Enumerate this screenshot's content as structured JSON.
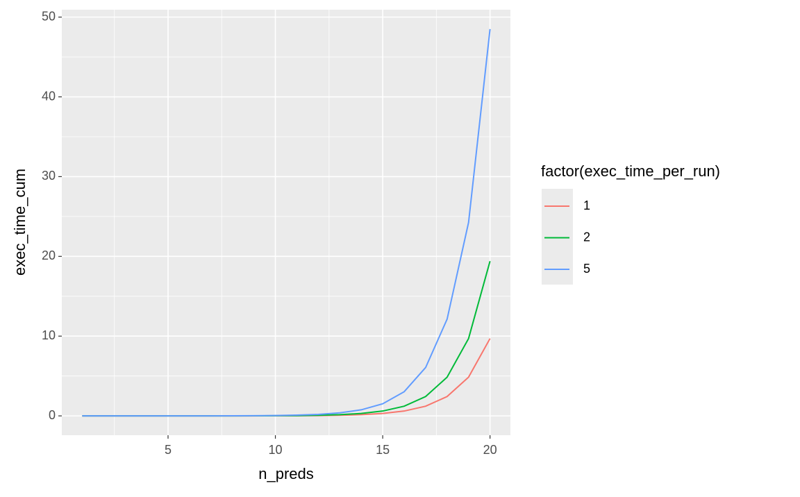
{
  "chart_data": {
    "type": "line",
    "x_label": "n_preds",
    "y_label": "exec_time_cum",
    "legend_title": "factor(exec_time_per_run)",
    "legend": "right",
    "x": [
      1,
      2,
      3,
      4,
      5,
      6,
      7,
      8,
      9,
      10,
      11,
      12,
      13,
      14,
      15,
      16,
      17,
      18,
      19,
      20
    ],
    "series": [
      {
        "name": "1",
        "color": "#F8766D",
        "values": [
          0,
          0,
          0,
          0,
          0,
          0,
          0.001,
          0.002,
          0.005,
          0.009,
          0.019,
          0.038,
          0.076,
          0.152,
          0.303,
          0.606,
          1.213,
          2.425,
          4.85,
          9.7
        ]
      },
      {
        "name": "2",
        "color": "#00BA38",
        "values": [
          0,
          0,
          0,
          0,
          0.001,
          0.001,
          0.002,
          0.005,
          0.009,
          0.019,
          0.038,
          0.076,
          0.152,
          0.303,
          0.606,
          1.213,
          2.425,
          4.85,
          9.7,
          19.4
        ]
      },
      {
        "name": "5",
        "color": "#619CFF",
        "values": [
          0,
          0,
          0,
          0.001,
          0.001,
          0.003,
          0.006,
          0.012,
          0.024,
          0.047,
          0.095,
          0.189,
          0.379,
          0.758,
          1.516,
          3.031,
          6.063,
          12.125,
          24.25,
          48.5
        ]
      }
    ],
    "xlim": [
      0.05,
      20.95
    ],
    "xticks": [
      5,
      10,
      15,
      20
    ],
    "xminor": [
      2.5,
      7.5,
      12.5,
      17.5
    ],
    "ylim": [
      -2.425,
      50.925
    ],
    "yticks": [
      0,
      10,
      20,
      30,
      40,
      50
    ],
    "yminor": [
      5,
      15,
      25,
      35,
      45
    ],
    "grid": true
  }
}
